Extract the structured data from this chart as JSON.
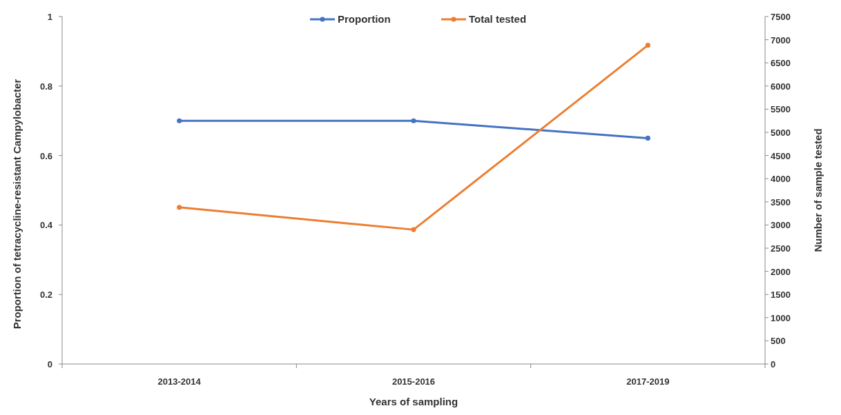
{
  "chart_data": {
    "type": "line",
    "xlabel": "Years of sampling",
    "ylabel": "Proportion of tetracycline-resistant Campylobacter",
    "y2label": "Number of sample tested",
    "categories": [
      "2013-2014",
      "2015-2016",
      "2017-2019"
    ],
    "series": [
      {
        "name": "Proportion",
        "color": "#4472c4",
        "values": [
          0.7,
          0.7,
          0.65
        ]
      },
      {
        "name": "Total tested",
        "color": "#ed7d31",
        "values": [
          3380,
          2900,
          6880
        ],
        "axis": "y2"
      }
    ],
    "ylim": [
      0,
      1
    ],
    "yticks": [
      0,
      0.2,
      0.4,
      0.6,
      0.8,
      1
    ],
    "y2lim": [
      0,
      7500
    ],
    "y2ticks": [
      0,
      500,
      1000,
      1500,
      2000,
      2500,
      3000,
      3500,
      4000,
      4500,
      5000,
      5500,
      6000,
      6500,
      7000,
      7500
    ],
    "legend": "top",
    "marker": "circle",
    "grid": false
  }
}
